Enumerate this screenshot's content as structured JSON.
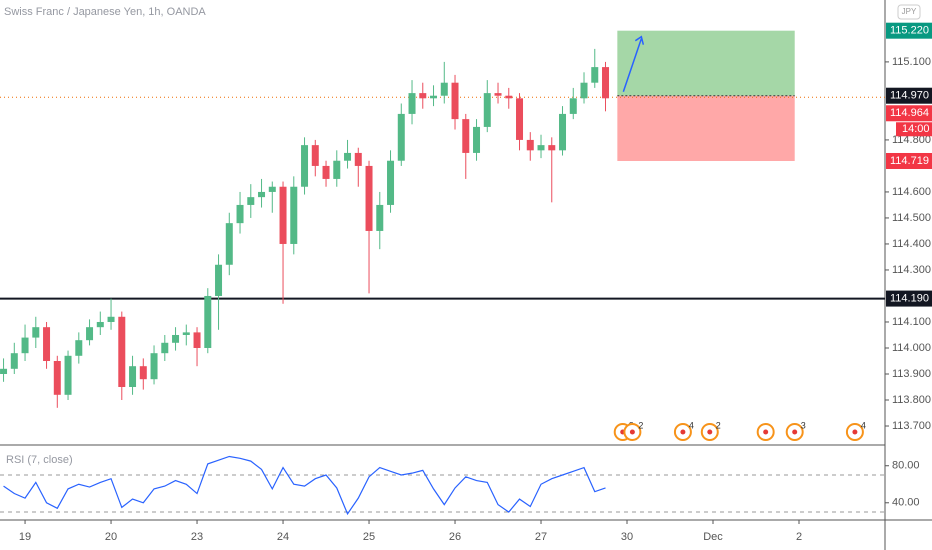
{
  "chart_data": [
    {
      "type": "candlestick",
      "title": "Swiss Franc / Japanese Yen, 1h, OANDA",
      "currency": "JPY",
      "x": [
        -2,
        -1,
        0,
        1,
        2,
        3,
        4,
        5,
        6,
        7,
        8,
        9,
        10,
        11,
        12,
        13,
        14,
        15,
        16,
        17,
        18,
        19,
        20,
        21,
        22,
        23,
        24,
        25,
        26,
        27,
        28,
        29,
        30,
        31,
        32,
        33,
        34,
        35,
        36,
        37,
        38,
        39,
        40,
        41,
        42,
        43,
        44,
        45,
        46,
        47,
        48,
        49,
        50,
        51,
        52,
        53,
        54
      ],
      "open": [
        113.9,
        113.92,
        113.98,
        114.04,
        114.08,
        113.95,
        113.82,
        113.97,
        114.03,
        114.08,
        114.1,
        114.12,
        113.85,
        113.93,
        113.88,
        113.98,
        114.02,
        114.05,
        114.06,
        114.0,
        114.2,
        114.32,
        114.48,
        114.55,
        114.58,
        114.6,
        114.62,
        114.4,
        114.62,
        114.78,
        114.7,
        114.65,
        114.72,
        114.75,
        114.7,
        114.45,
        114.55,
        114.72,
        114.9,
        114.98,
        114.96,
        114.97,
        115.02,
        114.88,
        114.75,
        114.85,
        114.98,
        114.97,
        114.96,
        114.8,
        114.76,
        114.78,
        114.76,
        114.9,
        114.96,
        115.02,
        115.08
      ],
      "high": [
        113.96,
        114.02,
        114.09,
        114.12,
        114.1,
        113.97,
        113.99,
        114.06,
        114.11,
        114.14,
        114.19,
        114.14,
        113.97,
        113.96,
        114.01,
        114.05,
        114.08,
        114.09,
        114.08,
        114.23,
        114.36,
        114.52,
        114.6,
        114.63,
        114.65,
        114.64,
        114.64,
        114.66,
        114.81,
        114.8,
        114.72,
        114.76,
        114.8,
        114.77,
        114.72,
        114.6,
        114.76,
        114.94,
        115.03,
        115.02,
        115.01,
        115.1,
        115.05,
        114.9,
        114.88,
        115.03,
        115.02,
        115.0,
        114.98,
        114.83,
        114.82,
        114.81,
        114.93,
        115.0,
        115.06,
        115.15,
        115.1
      ],
      "low": [
        113.87,
        113.9,
        113.95,
        114.0,
        113.92,
        113.77,
        113.8,
        113.94,
        114.01,
        114.05,
        114.07,
        113.8,
        113.82,
        113.84,
        113.86,
        113.95,
        113.99,
        114.01,
        113.93,
        113.98,
        114.07,
        114.28,
        114.44,
        114.5,
        114.54,
        114.52,
        114.17,
        114.36,
        114.59,
        114.66,
        114.62,
        114.62,
        114.69,
        114.62,
        114.21,
        114.38,
        114.52,
        114.7,
        114.86,
        114.92,
        114.93,
        114.94,
        114.84,
        114.65,
        114.72,
        114.83,
        114.94,
        114.92,
        114.76,
        114.72,
        114.73,
        114.56,
        114.74,
        114.88,
        114.94,
        115.0,
        114.91
      ],
      "close": [
        113.92,
        113.98,
        114.04,
        114.08,
        113.95,
        113.82,
        113.97,
        114.03,
        114.08,
        114.1,
        114.12,
        113.85,
        113.93,
        113.88,
        113.98,
        114.02,
        114.05,
        114.06,
        114.0,
        114.2,
        114.32,
        114.48,
        114.55,
        114.58,
        114.6,
        114.62,
        114.4,
        114.62,
        114.78,
        114.7,
        114.65,
        114.72,
        114.75,
        114.7,
        114.45,
        114.55,
        114.72,
        114.9,
        114.98,
        114.96,
        114.97,
        115.02,
        114.88,
        114.75,
        114.85,
        114.98,
        114.97,
        114.96,
        114.8,
        114.76,
        114.78,
        114.76,
        114.9,
        114.96,
        115.02,
        115.08,
        114.96
      ],
      "up_color": "#53b987",
      "down_color": "#eb4d5c",
      "xlim": [
        -2.33,
        80
      ],
      "xticks": [
        {
          "value": 0,
          "label": "19"
        },
        {
          "value": 8,
          "label": "20"
        },
        {
          "value": 16,
          "label": "23"
        },
        {
          "value": 24,
          "label": "24"
        },
        {
          "value": 32,
          "label": "25"
        },
        {
          "value": 40,
          "label": "26"
        },
        {
          "value": 48,
          "label": "27"
        },
        {
          "value": 56,
          "label": "30"
        },
        {
          "value": 64,
          "label": "Dec"
        },
        {
          "value": 72,
          "label": "2"
        }
      ],
      "ylim": [
        113.627,
        115.338
      ],
      "yticks": [
        {
          "value": 115.1,
          "label": "115.100"
        },
        {
          "value": 114.8,
          "label": "114.800"
        },
        {
          "value": 114.6,
          "label": "114.600"
        },
        {
          "value": 114.5,
          "label": "114.500"
        },
        {
          "value": 114.4,
          "label": "114.400"
        },
        {
          "value": 114.3,
          "label": "114.300"
        },
        {
          "value": 114.1,
          "label": "114.100"
        },
        {
          "value": 114.0,
          "label": "114.000"
        },
        {
          "value": 113.9,
          "label": "113.900"
        },
        {
          "value": 113.8,
          "label": "113.800"
        },
        {
          "value": 113.7,
          "label": "113.700"
        }
      ],
      "support": {
        "value": 114.19,
        "label": "114.190",
        "color": "#131722"
      },
      "position": {
        "x": [
          55.1,
          71.6
        ],
        "target": {
          "value": 115.22,
          "label": "115.220",
          "color": "#089981"
        },
        "entry": {
          "value": 114.97,
          "label": "114.970",
          "color": "#131722"
        },
        "stop": {
          "value": 114.719,
          "label": "114.719",
          "color": "#f23645"
        }
      },
      "last_price": {
        "value": 114.964,
        "label": "114.964",
        "countdown": "14:00",
        "color": "#f23645"
      },
      "events": [
        {
          "x": 55.6,
          "label": "2"
        },
        {
          "x": 56.5,
          "label": "2"
        },
        {
          "x": 61.2,
          "label": "4"
        },
        {
          "x": 63.7,
          "label": "2"
        },
        {
          "x": 68.9
        },
        {
          "x": 71.6,
          "label": "3"
        },
        {
          "x": 77.2,
          "label": "4"
        }
      ]
    },
    {
      "type": "line",
      "title": "RSI (7, close)",
      "x": [
        -2,
        -1,
        0,
        1,
        2,
        3,
        4,
        5,
        6,
        7,
        8,
        9,
        10,
        11,
        12,
        13,
        14,
        15,
        16,
        17,
        18,
        19,
        20,
        21,
        22,
        23,
        24,
        25,
        26,
        27,
        28,
        29,
        30,
        31,
        32,
        33,
        34,
        35,
        36,
        37,
        38,
        39,
        40,
        41,
        42,
        43,
        44,
        45,
        46,
        47,
        48,
        49,
        50,
        51,
        52,
        53,
        54
      ],
      "values": [
        58,
        50,
        45,
        62,
        40,
        34,
        55,
        60,
        57,
        62,
        66,
        35,
        44,
        40,
        55,
        58,
        64,
        60,
        50,
        82,
        86,
        90,
        88,
        85,
        76,
        55,
        78,
        60,
        58,
        66,
        70,
        56,
        28,
        45,
        68,
        78,
        74,
        70,
        72,
        75,
        55,
        38,
        56,
        68,
        64,
        62,
        38,
        30,
        44,
        36,
        60,
        66,
        70,
        74,
        78,
        52,
        56
      ],
      "color": "#2962ff",
      "ylim": [
        21.4,
        102.4
      ],
      "yticks": [
        {
          "value": 80,
          "label": "80.00"
        },
        {
          "value": 40,
          "label": "40.00"
        }
      ],
      "bands": [
        70,
        30
      ]
    }
  ]
}
